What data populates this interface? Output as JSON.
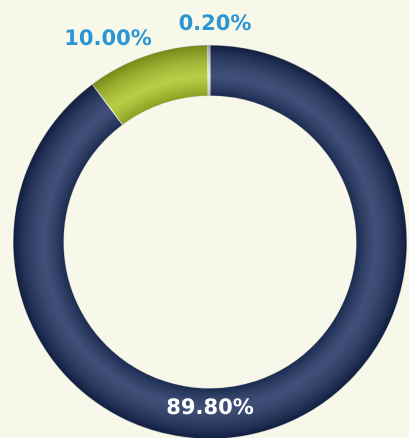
{
  "chart_data": {
    "type": "donut",
    "categories": [
      null,
      null,
      null
    ],
    "values": [
      89.8,
      10,
      0.2
    ],
    "value_labels": [
      "89.80%",
      "10.00%",
      "0.20%"
    ],
    "colors": [
      "#15295a",
      "#a9c21c",
      "#d6dbe6"
    ],
    "label_colors": [
      "#ffffff",
      "#2b96d3",
      "#2b96d3"
    ]
  }
}
